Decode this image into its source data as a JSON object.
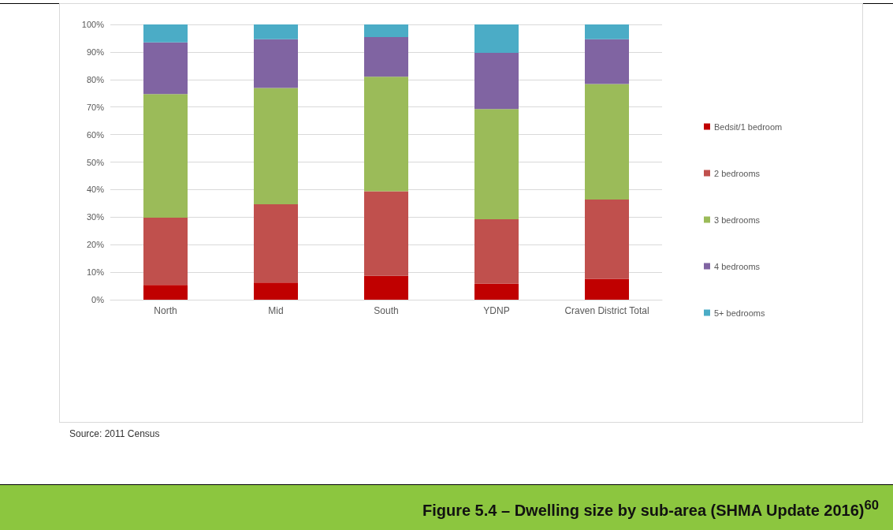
{
  "chart_data": {
    "type": "bar",
    "title": "Figure 5.4 – Dwelling size by sub-area (SHMA Update 2016)$^{60}$",
    "annotations": [
      "Source: 2011 Census"
    ],
    "categories": [
      "North",
      "Mid",
      "South",
      "YDNP",
      "Craven District Total"
    ],
    "stacked": true,
    "series": [
      {
        "name": "Bedsit/1 bedroom",
        "color": "#c00000",
        "values": [
          5.4,
          6.2,
          8.7,
          5.9,
          7.6
        ]
      },
      {
        "name": "2 bedrooms",
        "color": "#c0504d",
        "values": [
          24.4,
          28.5,
          30.7,
          23.3,
          28.8
        ]
      },
      {
        "name": "3 bedrooms",
        "color": "#9bbb59",
        "values": [
          44.9,
          42.2,
          41.6,
          40.1,
          42.0
        ]
      },
      {
        "name": "4 bedrooms",
        "color": "#8064a2",
        "values": [
          18.8,
          17.7,
          14.4,
          20.4,
          16.2
        ]
      },
      {
        "name": "5+ bedrooms",
        "color": "#4bacc6",
        "values": [
          6.5,
          5.4,
          4.6,
          10.3,
          5.4
        ]
      }
    ],
    "ylim": [
      0,
      100
    ],
    "yticks": [
      {
        "value": 0,
        "label": "0%"
      },
      {
        "value": 10,
        "label": "10%"
      },
      {
        "value": 20,
        "label": "20%"
      },
      {
        "value": 30,
        "label": "30%"
      },
      {
        "value": 40,
        "label": "40%"
      },
      {
        "value": 50,
        "label": "50%"
      },
      {
        "value": 60,
        "label": "60%"
      },
      {
        "value": 70,
        "label": "70%"
      },
      {
        "value": 80,
        "label": "80%"
      },
      {
        "value": 90,
        "label": "90%"
      },
      {
        "value": 100,
        "label": "100%"
      }
    ],
    "grid": "y",
    "legend": "right"
  }
}
